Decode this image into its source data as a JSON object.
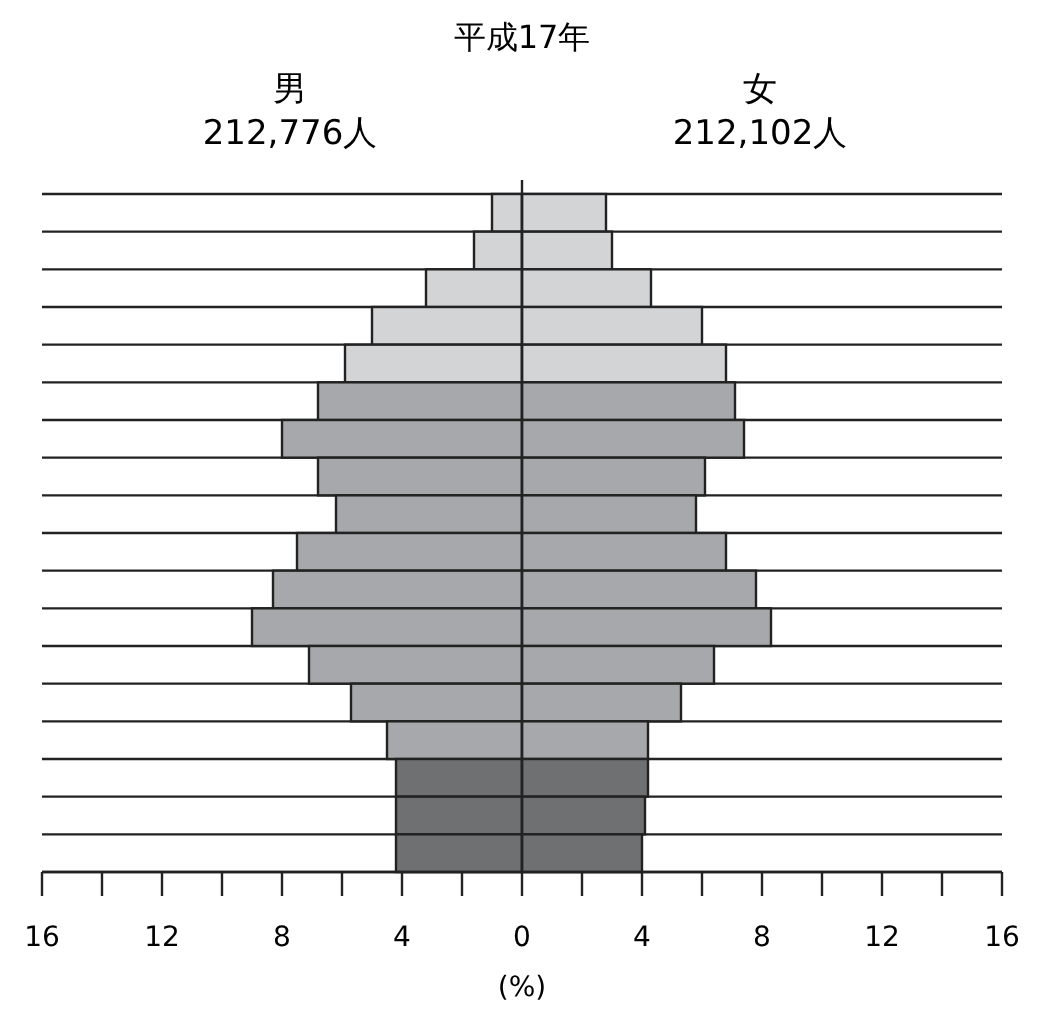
{
  "chart_data": {
    "type": "bar",
    "orientation": "horizontal",
    "title": "平成17年",
    "xlabel": "(%)",
    "categories": [
      null,
      null,
      null,
      null,
      null,
      null,
      null,
      null,
      null,
      null,
      null,
      null,
      null,
      null,
      null,
      null,
      null,
      null
    ],
    "series": [
      {
        "colors": [
          "#d3d4d6",
          "#d3d4d6",
          "#d3d4d6",
          "#d3d4d6",
          "#d3d4d6",
          "#a7a8ab",
          "#a7a8ab",
          "#a7a8ab",
          "#a7a8ab",
          "#a7a8ab",
          "#a7a8ab",
          "#a7a8ab",
          "#a7a8ab",
          "#a7a8ab",
          "#a7a8ab",
          "#6f7072",
          "#6f7072",
          "#6f7072"
        ],
        "values": [
          -1.0,
          -1.6,
          -3.2,
          -5.0,
          -5.9,
          -6.8,
          -8.0,
          -6.8,
          -6.2,
          -7.5,
          -8.3,
          -9.0,
          -7.1,
          -5.7,
          -4.5,
          -4.2,
          -4.2,
          -4.2
        ]
      },
      {
        "colors": [
          "#d3d4d6",
          "#d3d4d6",
          "#d3d4d6",
          "#d3d4d6",
          "#d3d4d6",
          "#a7a8ab",
          "#a7a8ab",
          "#a7a8ab",
          "#a7a8ab",
          "#a7a8ab",
          "#a7a8ab",
          "#a7a8ab",
          "#a7a8ab",
          "#a7a8ab",
          "#a7a8ab",
          "#6f7072",
          "#6f7072",
          "#6f7072"
        ],
        "values": [
          2.8,
          3.0,
          4.3,
          6.0,
          6.8,
          7.1,
          7.4,
          6.1,
          5.8,
          6.8,
          7.8,
          8.3,
          6.4,
          5.3,
          4.2,
          4.2,
          4.1,
          4.0
        ]
      }
    ],
    "annotations": [
      "男",
      "212,776人",
      "女",
      "212,102人"
    ],
    "stacked": true,
    "xlim": [
      -16,
      16
    ],
    "xticks": [
      {
        "value": -16,
        "label": "16"
      },
      {
        "value": -14,
        "label": null
      },
      {
        "value": -12,
        "label": "12"
      },
      {
        "value": -10,
        "label": null
      },
      {
        "value": -8,
        "label": "8"
      },
      {
        "value": -6,
        "label": null
      },
      {
        "value": -4,
        "label": "4"
      },
      {
        "value": -2,
        "label": null
      },
      0,
      {
        "value": 2,
        "label": null
      },
      4,
      {
        "value": 6,
        "label": null
      },
      8,
      {
        "value": 10,
        "label": null
      },
      12,
      {
        "value": 14,
        "label": null
      },
      16
    ],
    "grid": true,
    "legend": false
  }
}
